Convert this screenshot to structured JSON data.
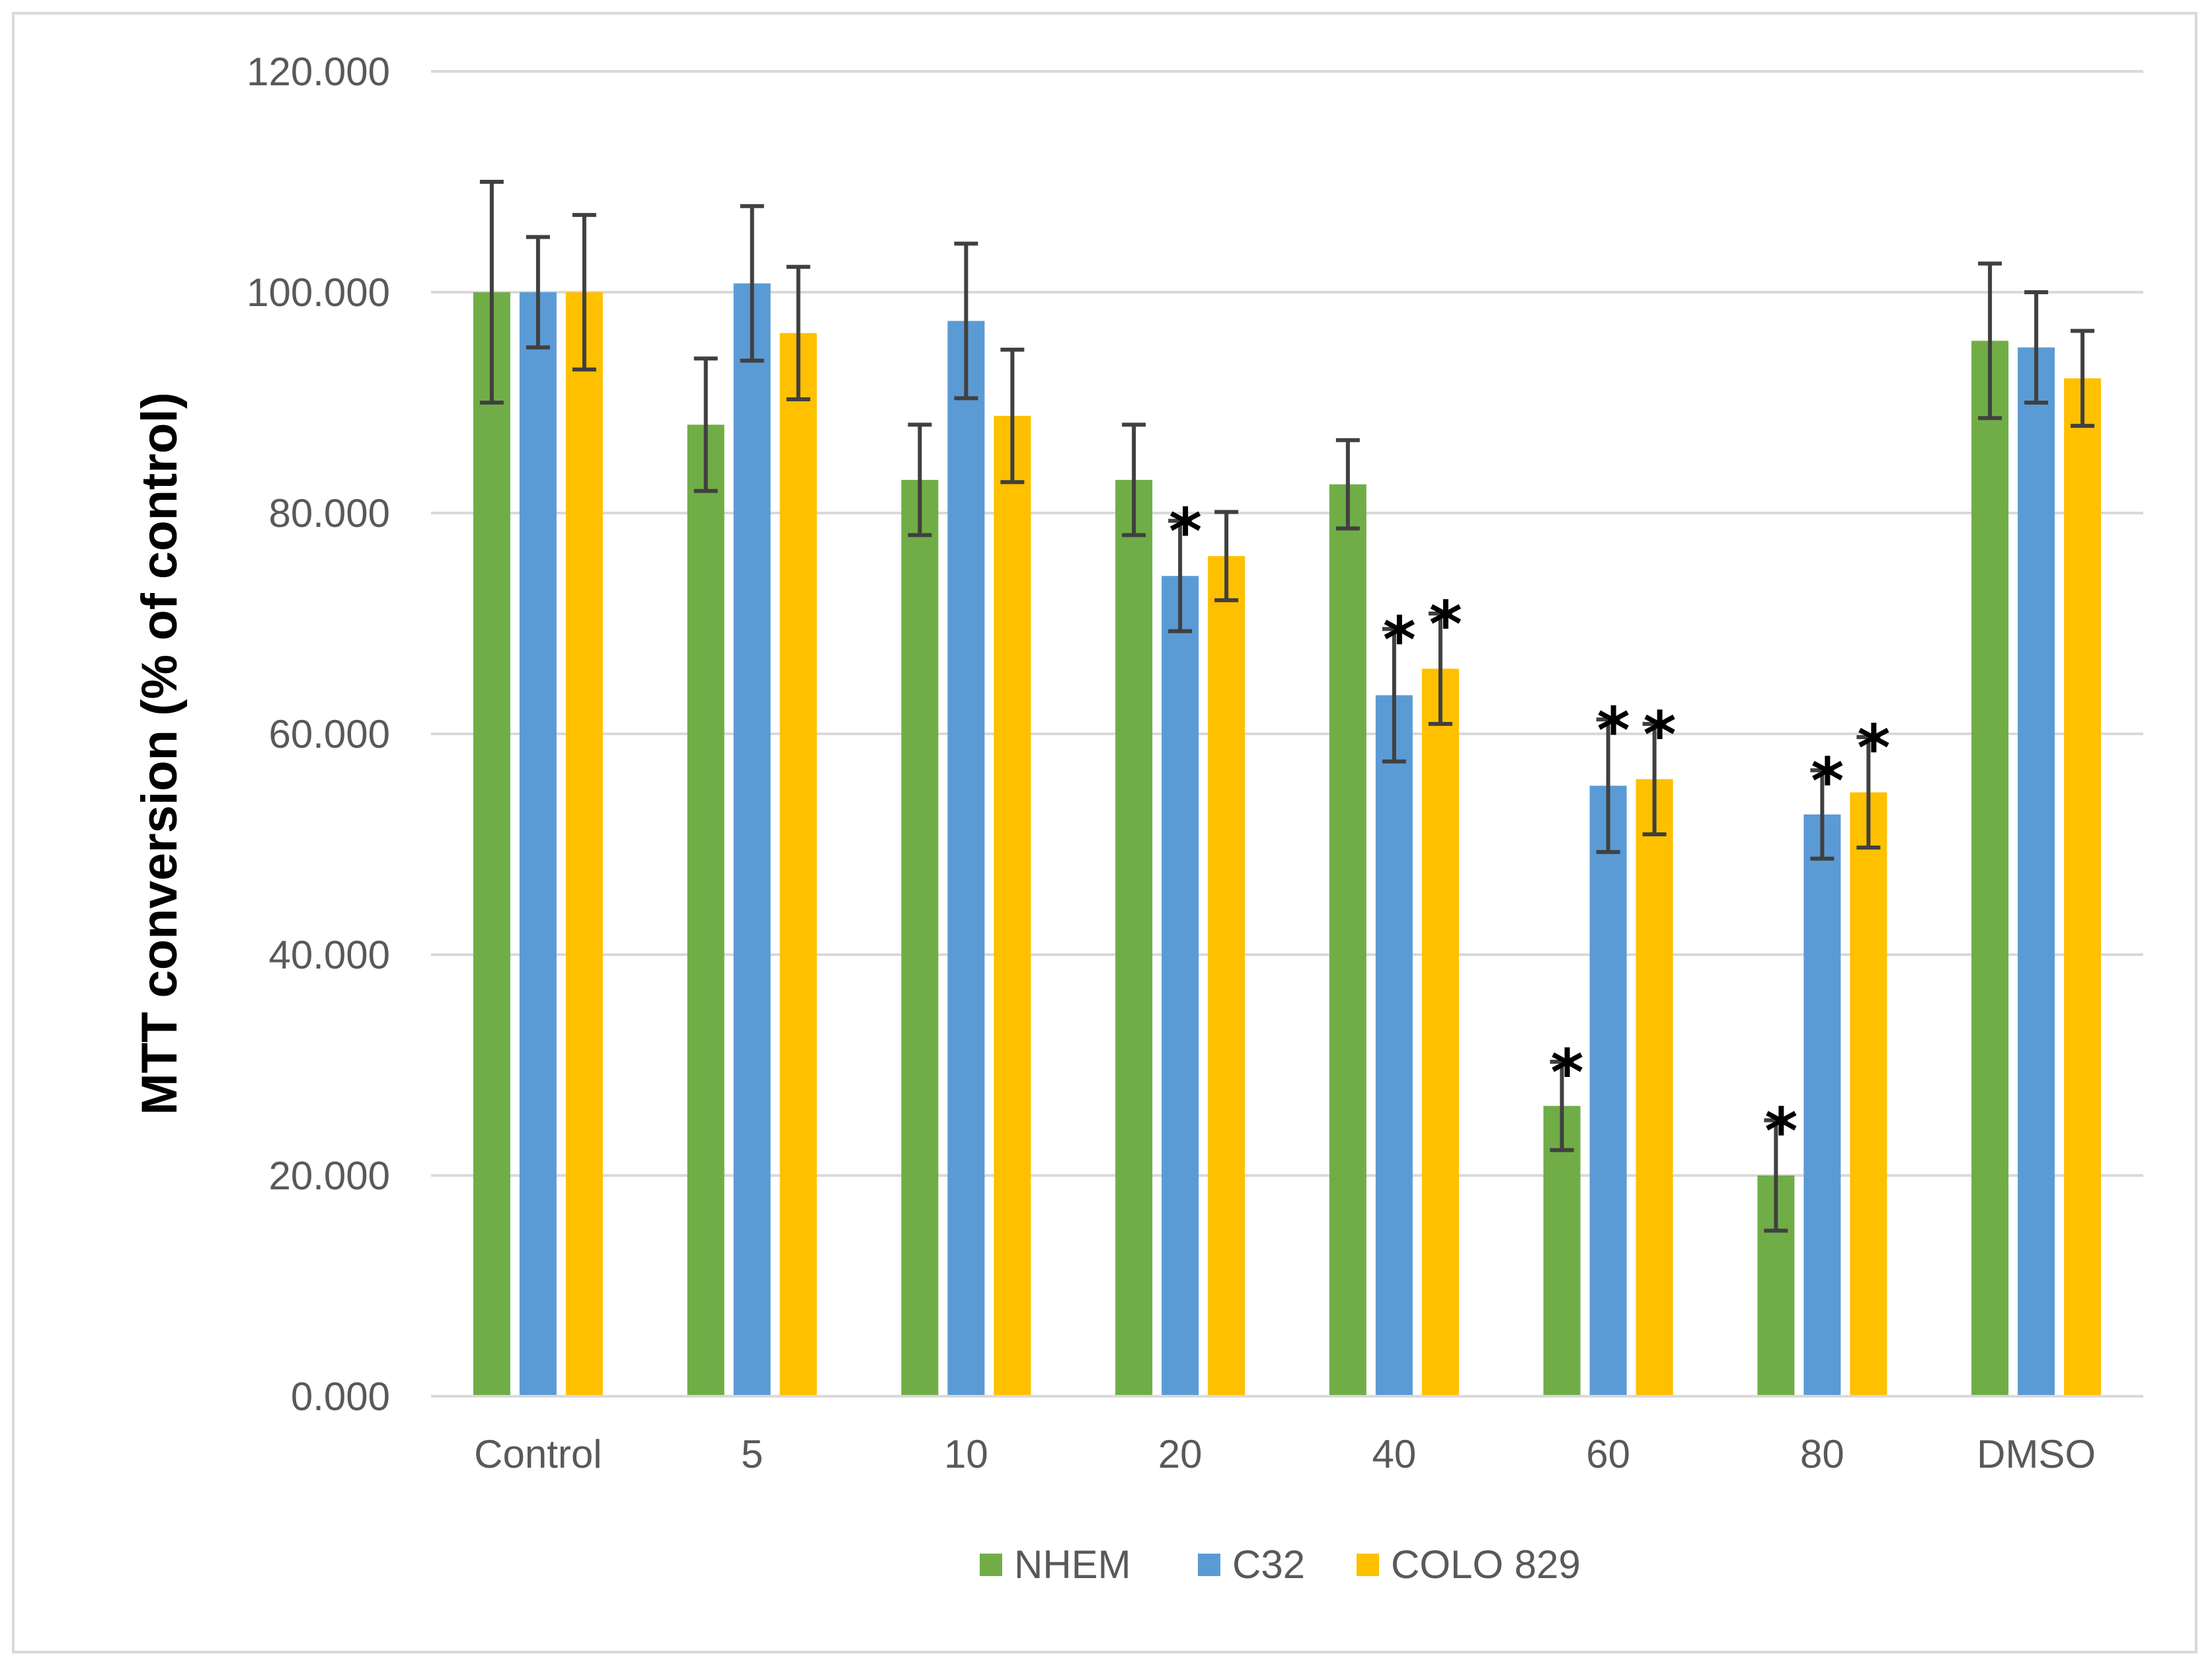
{
  "chart_data": {
    "type": "bar",
    "title": "",
    "xlabel": "",
    "ylabel": "MTT conversion (% of control)",
    "ylim": [
      0,
      120
    ],
    "yticks": [
      "0.000",
      "20.000",
      "40.000",
      "60.000",
      "80.000",
      "100.000",
      "120.000"
    ],
    "categories": [
      "Control",
      "5",
      "10",
      "20",
      "40",
      "60",
      "80",
      "DMSO"
    ],
    "grid": true,
    "legend_position": "bottom",
    "significance_marker": "*",
    "series": [
      {
        "name": "NHEM",
        "color": "#70ad47",
        "values": [
          100.0,
          88.0,
          83.0,
          83.0,
          82.6,
          26.3,
          20.0,
          95.6
        ],
        "errors": [
          10.0,
          6.0,
          5.0,
          5.0,
          4.0,
          4.0,
          5.0,
          7.0
        ],
        "significant": [
          false,
          false,
          false,
          false,
          false,
          true,
          true,
          false
        ]
      },
      {
        "name": "C32",
        "color": "#5b9bd5",
        "values": [
          100.0,
          100.8,
          97.4,
          74.3,
          63.5,
          55.3,
          52.7,
          95.0
        ],
        "errors": [
          5.0,
          7.0,
          7.0,
          5.0,
          6.0,
          6.0,
          4.0,
          5.0
        ],
        "significant": [
          false,
          false,
          false,
          true,
          true,
          true,
          true,
          false
        ]
      },
      {
        "name": "COLO 829",
        "color": "#ffc000",
        "values": [
          100.0,
          96.3,
          88.8,
          76.1,
          65.9,
          55.9,
          54.7,
          92.2
        ],
        "errors": [
          7.0,
          6.0,
          6.0,
          4.0,
          5.0,
          5.0,
          5.0,
          4.3
        ],
        "significant": [
          false,
          false,
          false,
          false,
          true,
          true,
          true,
          false
        ]
      }
    ]
  }
}
